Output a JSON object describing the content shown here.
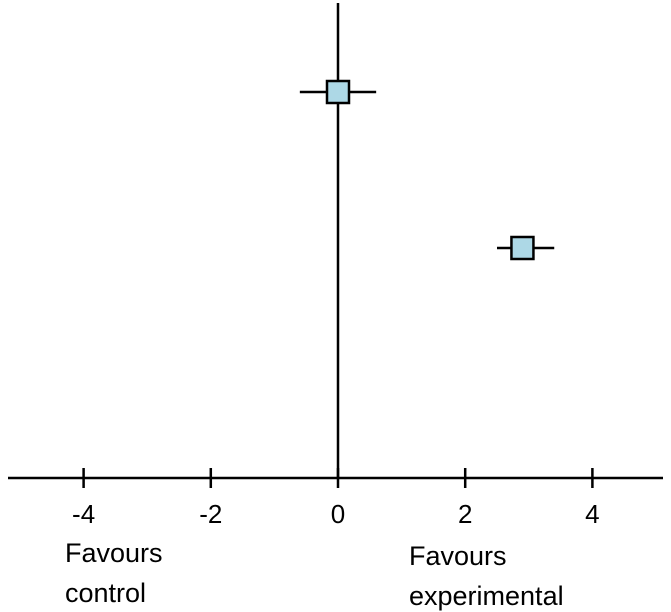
{
  "chart_data": {
    "type": "scatter",
    "subtype": "forest-plot",
    "title": "",
    "xlabel": "",
    "ylabel": "",
    "xlim": [
      -5.8,
      5.2
    ],
    "xticks": [
      -4,
      -2,
      0,
      2,
      4
    ],
    "tick_labels": [
      "-4",
      "-2",
      "0",
      "2",
      "4"
    ],
    "grid": false,
    "legend": "none",
    "points": [
      {
        "estimate": 0.0,
        "ci_low": -0.6,
        "ci_high": 0.6
      },
      {
        "estimate": 2.9,
        "ci_low": 2.5,
        "ci_high": 3.4
      }
    ],
    "annotations": {
      "left": [
        "Favours",
        "control"
      ],
      "right": [
        "Favours",
        "experimental"
      ]
    },
    "colors": {
      "marker_fill": "#add8e6",
      "line": "#000000"
    }
  }
}
